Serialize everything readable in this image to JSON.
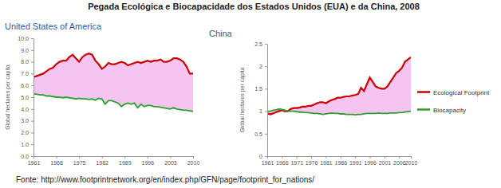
{
  "title": "Pegada Ecológica e Biocapacidade dos Estados Unidos (EUA) e da China, 2008",
  "source": "Fonte: http://www.footprintnetwork.org/en/index.php/GFN/page/footprint_for_nations/",
  "chart_data": [
    {
      "type": "line",
      "title": "United States of America",
      "ylabel": "Global hectares per capita",
      "x": [
        1961,
        1962,
        1963,
        1964,
        1965,
        1966,
        1967,
        1968,
        1969,
        1970,
        1971,
        1972,
        1973,
        1974,
        1975,
        1976,
        1977,
        1978,
        1979,
        1980,
        1981,
        1982,
        1983,
        1984,
        1985,
        1986,
        1987,
        1988,
        1989,
        1990,
        1991,
        1992,
        1993,
        1994,
        1995,
        1996,
        1997,
        1998,
        1999,
        2000,
        2001,
        2002,
        2003,
        2004,
        2005,
        2006,
        2007,
        2008,
        2009,
        2010
      ],
      "series": [
        {
          "color": "#cc0000",
          "values": [
            6.7,
            6.8,
            6.9,
            7.0,
            7.2,
            7.4,
            7.5,
            7.8,
            8.0,
            8.1,
            8.1,
            8.4,
            8.6,
            8.3,
            8.0,
            8.4,
            8.6,
            8.7,
            8.6,
            8.1,
            7.8,
            7.4,
            7.6,
            7.9,
            7.8,
            7.8,
            7.9,
            8.0,
            7.9,
            7.7,
            7.8,
            7.9,
            8.0,
            7.9,
            8.0,
            8.1,
            8.0,
            8.1,
            8.1,
            8.2,
            8.0,
            8.0,
            8.1,
            8.3,
            8.3,
            8.2,
            8.0,
            7.6,
            7.0,
            7.0
          ]
        },
        {
          "color": "#2ca02c",
          "values": [
            5.3,
            5.25,
            5.2,
            5.2,
            5.1,
            5.1,
            5.05,
            5.0,
            5.0,
            4.95,
            5.0,
            4.95,
            4.9,
            4.85,
            4.9,
            4.85,
            4.85,
            4.8,
            4.85,
            4.75,
            4.9,
            4.85,
            4.4,
            4.7,
            4.7,
            4.6,
            4.5,
            4.2,
            4.4,
            4.5,
            4.4,
            4.5,
            4.1,
            4.4,
            4.2,
            4.3,
            4.3,
            4.2,
            4.2,
            4.15,
            4.1,
            4.05,
            4.0,
            4.1,
            4.0,
            3.95,
            3.9,
            3.9,
            3.85,
            3.8
          ]
        }
      ],
      "xlim": [
        1961,
        2010
      ],
      "xticks": [
        1961,
        1968,
        1975,
        1982,
        1989,
        1996,
        2003,
        2010
      ],
      "ylim": [
        0,
        10
      ],
      "yticks": [
        {
          "value": 0,
          "label": "0.0"
        },
        {
          "value": 1,
          "label": "1.0"
        },
        {
          "value": 2,
          "label": "2.0"
        },
        {
          "value": 3,
          "label": "3.0"
        },
        {
          "value": 4,
          "label": "4.0"
        },
        {
          "value": 5,
          "label": "5.0"
        },
        {
          "value": 6,
          "label": "6.0"
        },
        {
          "value": 7,
          "label": "7.0"
        },
        {
          "value": 8,
          "label": "8.0"
        },
        {
          "value": 9,
          "label": "9.0"
        },
        {
          "value": 10,
          "label": "10.0"
        }
      ],
      "grid": false
    },
    {
      "type": "line",
      "title": "China",
      "ylabel": "Global hectares per capita",
      "x": [
        1961,
        1962,
        1963,
        1964,
        1965,
        1966,
        1967,
        1968,
        1969,
        1970,
        1971,
        1972,
        1973,
        1974,
        1975,
        1976,
        1977,
        1978,
        1979,
        1980,
        1981,
        1982,
        1983,
        1984,
        1985,
        1986,
        1987,
        1988,
        1989,
        1990,
        1991,
        1992,
        1993,
        1994,
        1995,
        1996,
        1997,
        1998,
        1999,
        2000,
        2001,
        2002,
        2003,
        2004,
        2005,
        2006,
        2007,
        2008,
        2009,
        2010
      ],
      "series": [
        {
          "name": "Ecological Footprint",
          "color": "#cc0000",
          "values": [
            0.95,
            0.93,
            0.95,
            0.98,
            1.0,
            1.02,
            1.0,
            1.0,
            1.05,
            1.07,
            1.07,
            1.08,
            1.1,
            1.1,
            1.12,
            1.12,
            1.15,
            1.18,
            1.2,
            1.2,
            1.18,
            1.22,
            1.25,
            1.27,
            1.3,
            1.3,
            1.32,
            1.33,
            1.33,
            1.35,
            1.36,
            1.38,
            1.52,
            1.45,
            1.6,
            1.75,
            1.65,
            1.55,
            1.52,
            1.5,
            1.5,
            1.55,
            1.65,
            1.75,
            1.85,
            1.9,
            1.97,
            2.1,
            2.15,
            2.2
          ]
        },
        {
          "name": "Biocapacity",
          "color": "#2ca02c",
          "values": [
            1.0,
            1.0,
            1.02,
            1.03,
            1.05,
            1.04,
            1.02,
            1.0,
            1.0,
            1.0,
            0.99,
            0.98,
            0.98,
            0.97,
            0.97,
            0.96,
            0.95,
            0.95,
            0.94,
            0.93,
            0.94,
            0.95,
            0.96,
            0.95,
            0.95,
            0.94,
            0.94,
            0.93,
            0.93,
            0.93,
            0.92,
            0.93,
            0.93,
            0.94,
            0.95,
            0.95,
            0.95,
            0.95,
            0.96,
            0.95,
            0.95,
            0.95,
            0.96,
            0.96,
            0.96,
            0.97,
            0.97,
            0.98,
            0.99,
            1.0
          ]
        }
      ],
      "xlim": [
        1961,
        2010
      ],
      "xticks": [
        1961,
        1966,
        1971,
        1976,
        1981,
        1986,
        1991,
        1996,
        2001,
        2006,
        2010
      ],
      "ylim": [
        0,
        2.5
      ],
      "yticks": [
        0,
        0.5,
        1,
        1.5,
        2,
        2.5
      ],
      "grid": false,
      "legend": "right"
    }
  ]
}
